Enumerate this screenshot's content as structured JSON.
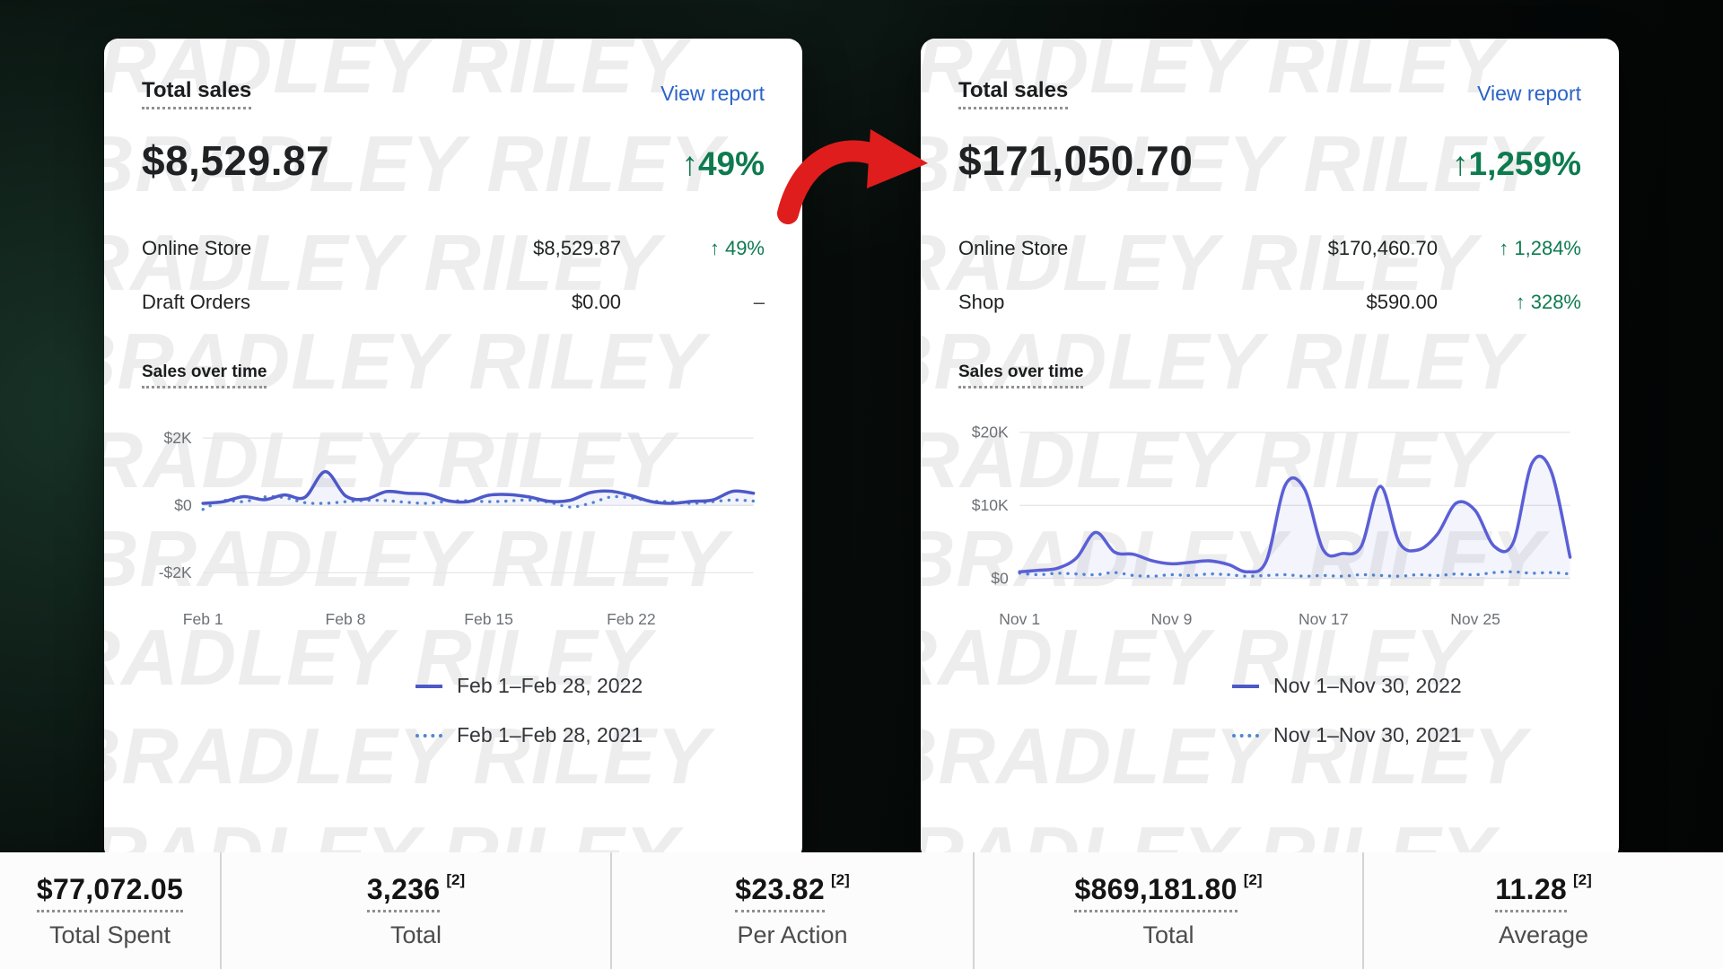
{
  "watermark": "BRADLEY RILEY",
  "accent_colors": {
    "green": "#0e7b4f",
    "link_blue": "#2b63c8",
    "line_indigo": "#4d59c8",
    "line_dotted_blue": "#5187d2",
    "arrow_red": "#df1d1d"
  },
  "cards": [
    {
      "title": "Total sales",
      "view_report": "View report",
      "total": "$8,529.87",
      "change": "↑49%",
      "rows": [
        {
          "label": "Online Store",
          "value": "$8,529.87",
          "change": "↑ 49%",
          "positive": true
        },
        {
          "label": "Draft Orders",
          "value": "$0.00",
          "change": "–",
          "positive": false
        }
      ],
      "section_title": "Sales over time",
      "legend": [
        {
          "label": "Feb 1–Feb 28, 2022",
          "style": "solid"
        },
        {
          "label": "Feb 1–Feb 28, 2021",
          "style": "dotted"
        }
      ]
    },
    {
      "title": "Total sales",
      "view_report": "View report",
      "total": "$171,050.70",
      "change": "↑1,259%",
      "rows": [
        {
          "label": "Online Store",
          "value": "$170,460.70",
          "change": "↑ 1,284%",
          "positive": true
        },
        {
          "label": "Shop",
          "value": "$590.00",
          "change": "↑ 328%",
          "positive": true
        }
      ],
      "section_title": "Sales over time",
      "legend": [
        {
          "label": "Nov 1–Nov 30, 2022",
          "style": "solid"
        },
        {
          "label": "Nov 1–Nov 30, 2021",
          "style": "dotted"
        }
      ]
    }
  ],
  "chart_data": [
    {
      "type": "line",
      "title": "Sales over time",
      "ylim": [
        -2600,
        2600
      ],
      "y_ticks": [
        {
          "value": 2000,
          "label": "$2K"
        },
        {
          "value": 0,
          "label": "$0"
        },
        {
          "value": -2000,
          "label": "-$2K"
        }
      ],
      "x_ticks": [
        {
          "pos": 0.0,
          "label": "Feb 1"
        },
        {
          "pos": 0.259,
          "label": "Feb 8"
        },
        {
          "pos": 0.519,
          "label": "Feb 15"
        },
        {
          "pos": 0.778,
          "label": "Feb 22"
        }
      ],
      "series": [
        {
          "name": "Feb 1–Feb 28, 2022",
          "style": "solid",
          "color": "#4d59c8",
          "values": [
            60,
            110,
            260,
            170,
            310,
            240,
            1000,
            280,
            190,
            410,
            360,
            330,
            140,
            110,
            300,
            320,
            250,
            120,
            150,
            380,
            420,
            290,
            110,
            60,
            120,
            160,
            420,
            360
          ]
        },
        {
          "name": "Feb 1–Feb 28, 2021",
          "style": "dotted",
          "color": "#5187d2",
          "values": [
            -120,
            140,
            110,
            250,
            230,
            80,
            60,
            110,
            150,
            140,
            90,
            60,
            120,
            140,
            110,
            130,
            160,
            90,
            -50,
            60,
            250,
            220,
            130,
            110,
            60,
            110,
            160,
            130
          ]
        }
      ]
    },
    {
      "type": "line",
      "title": "Sales over time",
      "ylim": [
        -2000,
        22000
      ],
      "y_ticks": [
        {
          "value": 20000,
          "label": "$20K"
        },
        {
          "value": 10000,
          "label": "$10K"
        },
        {
          "value": 0,
          "label": "$0"
        }
      ],
      "x_ticks": [
        {
          "pos": 0.0,
          "label": "Nov 1"
        },
        {
          "pos": 0.276,
          "label": "Nov 9"
        },
        {
          "pos": 0.552,
          "label": "Nov 17"
        },
        {
          "pos": 0.828,
          "label": "Nov 25"
        }
      ],
      "series": [
        {
          "name": "Nov 1–Nov 30, 2022",
          "style": "solid",
          "color": "#5b5fd6",
          "values": [
            900,
            1100,
            1400,
            2800,
            6300,
            3600,
            3300,
            2400,
            2000,
            2200,
            2400,
            1900,
            900,
            2400,
            12800,
            12300,
            3900,
            3400,
            4400,
            12600,
            4900,
            3900,
            6000,
            10300,
            9300,
            4400,
            4900,
            15800,
            14700,
            2900
          ]
        },
        {
          "name": "Nov 1–Nov 30, 2021",
          "style": "dotted",
          "color": "#5187d2",
          "values": [
            700,
            500,
            700,
            600,
            500,
            800,
            400,
            300,
            500,
            400,
            600,
            500,
            300,
            400,
            500,
            300,
            400,
            300,
            500,
            400,
            300,
            500,
            400,
            600,
            500,
            800,
            900,
            700,
            800,
            600
          ]
        }
      ]
    }
  ],
  "footer": {
    "stats": [
      {
        "value": "$77,072.05",
        "sup": "",
        "label": "Total Spent"
      },
      {
        "value": "3,236",
        "sup": "[2]",
        "label": "Total"
      },
      {
        "value": "$23.82",
        "sup": "[2]",
        "label": "Per Action"
      },
      {
        "value": "$869,181.80",
        "sup": "[2]",
        "label": "Total"
      },
      {
        "value": "11.28",
        "sup": "[2]",
        "label": "Average"
      }
    ]
  }
}
